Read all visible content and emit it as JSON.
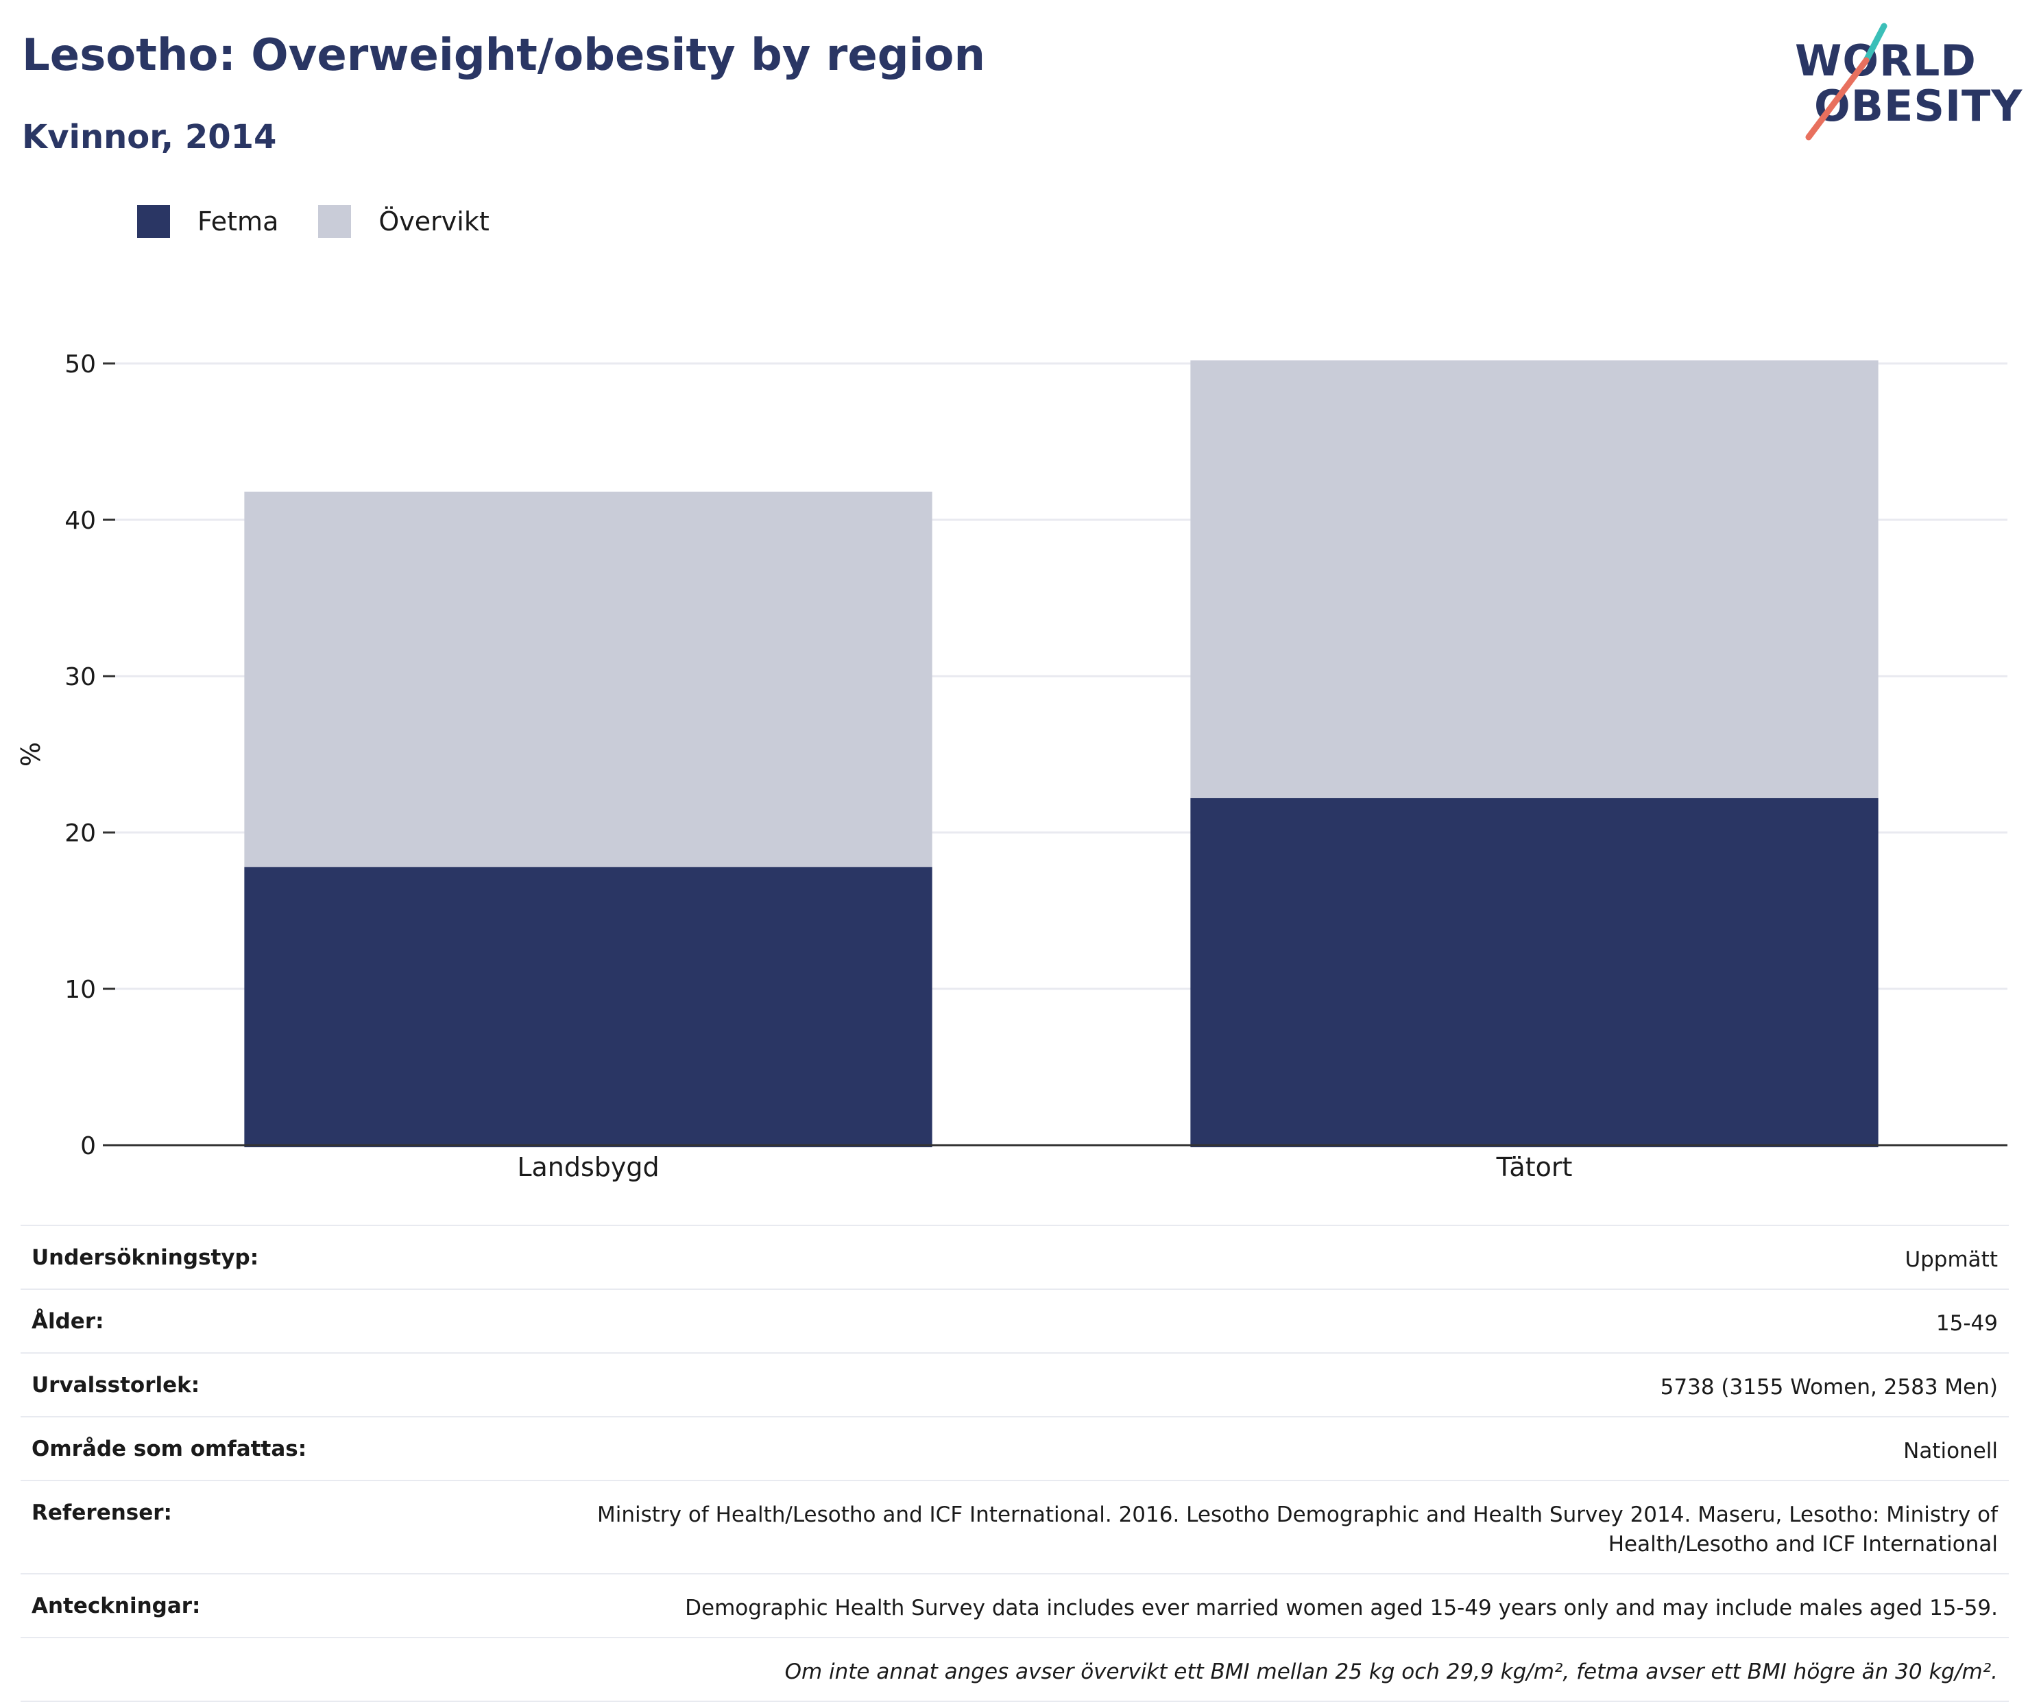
{
  "header": {
    "title": "Lesotho: Overweight/obesity by region",
    "subtitle": "Kvinnor, 2014"
  },
  "logo": {
    "line1": "WORLD",
    "line2": "OBESITY"
  },
  "colors": {
    "fetma": "#2a3664",
    "overvikt": "#c9ccd8",
    "title": "#2a3664",
    "accent_teal": "#3bbfb8",
    "accent_coral": "#e8705e"
  },
  "legend": [
    {
      "label": "Fetma",
      "color": "#2a3664"
    },
    {
      "label": "Övervikt",
      "color": "#c9ccd8"
    }
  ],
  "chart_data": {
    "type": "bar",
    "stacked": true,
    "categories": [
      "Landsbygd",
      "Tätort"
    ],
    "series": [
      {
        "name": "Fetma",
        "values": [
          17.8,
          22.2
        ]
      },
      {
        "name": "Övervikt",
        "values": [
          24.0,
          28.0
        ]
      }
    ],
    "xlabel": "",
    "ylabel": "%",
    "ylim": [
      0,
      50
    ],
    "yticks": [
      0,
      10,
      20,
      30,
      40,
      50
    ],
    "grid": true,
    "legend_position": "top-left"
  },
  "info": [
    {
      "label": "Undersökningstyp:",
      "value": "Uppmätt"
    },
    {
      "label": "Ålder:",
      "value": "15-49"
    },
    {
      "label": "Urvalsstorlek:",
      "value": "5738 (3155 Women, 2583 Men)"
    },
    {
      "label": "Område som omfattas:",
      "value": "Nationell"
    },
    {
      "label": "Referenser:",
      "value": "Ministry of Health/Lesotho and ICF International. 2016. Lesotho Demographic and Health Survey 2014. Maseru, Lesotho: Ministry of Health/Lesotho and ICF International"
    },
    {
      "label": "Anteckningar:",
      "value": "Demographic Health Survey data includes ever married women aged 15-49 years only and may include males aged 15-59."
    }
  ],
  "footnote": "Om inte annat anges avser övervikt ett BMI mellan 25 kg och 29,9 kg/m², fetma avser ett BMI högre än 30 kg/m²."
}
